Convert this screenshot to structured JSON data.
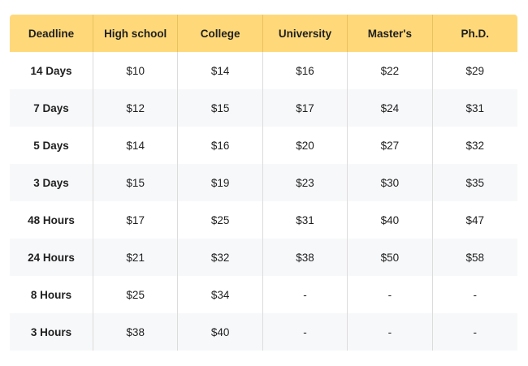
{
  "table": {
    "headers": [
      "Deadline",
      "High school",
      "College",
      "University",
      "Master's",
      "Ph.D."
    ],
    "rows": [
      [
        "14 Days",
        "$10",
        "$14",
        "$16",
        "$22",
        "$29"
      ],
      [
        "7 Days",
        "$12",
        "$15",
        "$17",
        "$24",
        "$31"
      ],
      [
        "5 Days",
        "$14",
        "$16",
        "$20",
        "$27",
        "$32"
      ],
      [
        "3 Days",
        "$15",
        "$19",
        "$23",
        "$30",
        "$35"
      ],
      [
        "48 Hours",
        "$17",
        "$25",
        "$31",
        "$40",
        "$47"
      ],
      [
        "24 Hours",
        "$21",
        "$32",
        "$38",
        "$50",
        "$58"
      ],
      [
        "8 Hours",
        "$25",
        "$34",
        "-",
        "-",
        "-"
      ],
      [
        "3 Hours",
        "$38",
        "$40",
        "-",
        "-",
        "-"
      ]
    ]
  },
  "colors": {
    "header_background": "#ffd979",
    "striped_row_background": "#f7f8fa",
    "divider": "#dcdcdc"
  }
}
